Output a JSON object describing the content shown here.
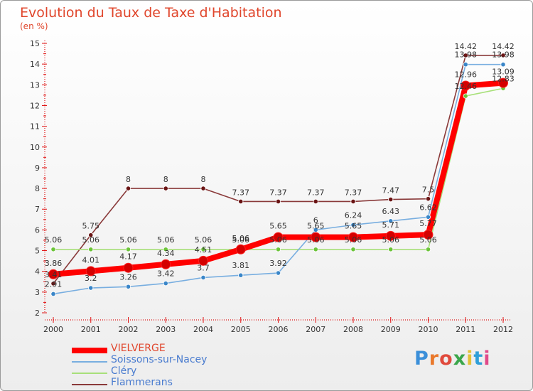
{
  "header": {
    "title": "Evolution du Taux de Taxe d'Habitation",
    "subtitle": "(en %)"
  },
  "logo": {
    "text": "Proxiti",
    "letter_colors": [
      "#3b8fd9",
      "#e9792c",
      "#e04a3c",
      "#3aa64a",
      "#e3c238",
      "#2f9fd8",
      "#e04a8a"
    ]
  },
  "chart_data": {
    "type": "line",
    "x": [
      "2000",
      "2001",
      "2002",
      "2003",
      "2004",
      "2005",
      "2006",
      "2007",
      "2008",
      "2009",
      "2010",
      "2011",
      "2012"
    ],
    "ylim": [
      2,
      15
    ],
    "yticks": [
      "2",
      "3",
      "4",
      "5",
      "6",
      "7",
      "8",
      "9",
      "10",
      "11",
      "12",
      "13",
      "14",
      "15"
    ],
    "grid": false,
    "legend_position": "bottom-left",
    "series": [
      {
        "name": "VIELVERGE",
        "color": "#ff0000",
        "marker_color": "#d40000",
        "values": [
          3.86,
          4.01,
          4.17,
          4.34,
          4.51,
          5.06,
          5.65,
          5.65,
          5.65,
          5.71,
          5.77,
          12.96,
          13.09
        ],
        "labels": [
          "3.86",
          "4.01",
          "4.17",
          "4.34",
          "4.51",
          "5.06",
          "5.65",
          "5.65",
          "5.65",
          "5.71",
          "5.77",
          "12.96",
          "13.09"
        ]
      },
      {
        "name": "Soissons-sur-Nacey",
        "color": "#78aee0",
        "marker_color": "#3a86c8",
        "values": [
          2.91,
          3.2,
          3.26,
          3.42,
          3.7,
          3.81,
          3.92,
          6,
          6.24,
          6.43,
          6.62,
          13.98,
          13.98
        ],
        "labels": [
          "2.91",
          "3.2",
          "3.26",
          "3.42",
          "3.7",
          "3.81",
          "3.92",
          "6",
          "6.24",
          "6.43",
          "6.62",
          "13.98",
          "13.98"
        ]
      },
      {
        "name": "Cléry",
        "color": "#a8e07a",
        "marker_color": "#6cc43a",
        "values": [
          5.06,
          5.06,
          5.06,
          5.06,
          5.06,
          5.06,
          5.06,
          5.06,
          5.06,
          5.06,
          5.06,
          12.46,
          12.83
        ],
        "labels": [
          "5.06",
          "5.06",
          "5.06",
          "5.06",
          "5.06",
          "5.06",
          "5.06",
          "5.06",
          "5.06",
          "5.06",
          "5.06",
          "12.46",
          "12.83"
        ]
      },
      {
        "name": "Flammerans",
        "color": "#8a3a3a",
        "marker_color": "#6a1414",
        "values": [
          3.41,
          5.75,
          8,
          8,
          8,
          7.37,
          7.37,
          7.37,
          7.37,
          7.47,
          7.5,
          14.42,
          14.42
        ],
        "labels": [
          "3.41",
          "5.75",
          "8",
          "8",
          "8",
          "7.37",
          "7.37",
          "7.37",
          "7.37",
          "7.47",
          "7.5",
          "14.42",
          "14.42"
        ]
      }
    ]
  }
}
